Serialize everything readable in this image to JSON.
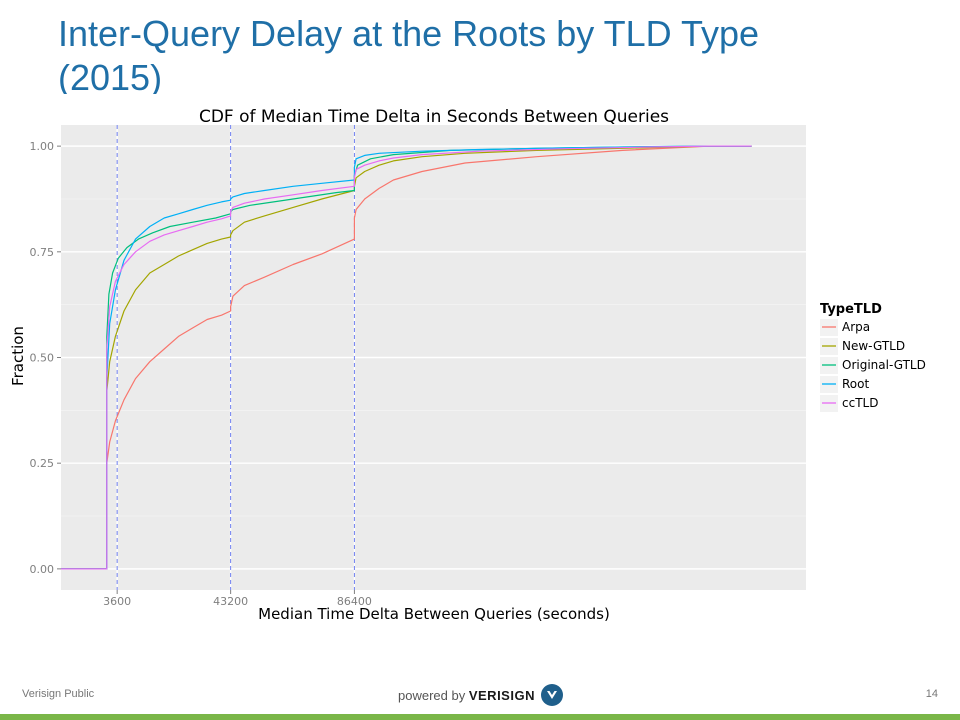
{
  "slide": {
    "title": "Inter-Query Delay at the Roots by TLD Type (2015)",
    "footer_left": "Verisign Public",
    "page_number": "14",
    "brand_prefix": "powered by",
    "brand_name": "VERISIGN"
  },
  "colors": {
    "title": "#1f6fa7",
    "panel": "#ebebeb",
    "grid": "#ffffff",
    "vline": "#6f7ff0",
    "bottom_bar": "#7ab648"
  },
  "chart_data": {
    "type": "line",
    "title": "CDF of Median Time Delta in Seconds Between Queries",
    "xlabel": "Median Time Delta Between Queries (seconds)",
    "ylabel": "Fraction",
    "xlim": [
      -16000,
      244000
    ],
    "ylim": [
      -0.05,
      1.05
    ],
    "xticks": [
      3600,
      43200,
      86400
    ],
    "yticks": [
      0,
      0.25,
      0.5,
      0.75,
      1
    ],
    "ytick_labels": [
      "0.00",
      "0.25",
      "0.50",
      "0.75",
      "1.00"
    ],
    "vlines": [
      3600,
      43200,
      86400
    ],
    "grid": true,
    "legend": {
      "title": "TypeTLD",
      "position": "right"
    },
    "series": [
      {
        "name": "Arpa",
        "color": "#f8766d",
        "x": [
          -16000,
          0,
          1,
          1000,
          3000,
          6000,
          10000,
          15000,
          20000,
          25000,
          30000,
          35000,
          40000,
          43199,
          43201,
          44000,
          48000,
          55000,
          65000,
          75000,
          86399,
          86401,
          87000,
          90000,
          95000,
          100000,
          110000,
          125000,
          150000,
          180000,
          210000,
          225000
        ],
        "y": [
          0,
          0,
          0.25,
          0.3,
          0.35,
          0.4,
          0.45,
          0.49,
          0.52,
          0.55,
          0.57,
          0.59,
          0.6,
          0.61,
          0.62,
          0.645,
          0.67,
          0.69,
          0.72,
          0.745,
          0.78,
          0.83,
          0.85,
          0.875,
          0.9,
          0.92,
          0.94,
          0.96,
          0.975,
          0.99,
          1.0,
          1.0
        ]
      },
      {
        "name": "New-GTLD",
        "color": "#a3a500",
        "x": [
          -16000,
          0,
          1,
          1000,
          3000,
          6000,
          10000,
          15000,
          20000,
          25000,
          30000,
          35000,
          40000,
          43199,
          43201,
          44000,
          48000,
          55000,
          65000,
          75000,
          86399,
          86401,
          87000,
          90000,
          95000,
          100000,
          110000,
          125000,
          150000,
          180000,
          210000,
          225000
        ],
        "y": [
          0,
          0,
          0.42,
          0.49,
          0.55,
          0.61,
          0.66,
          0.7,
          0.72,
          0.74,
          0.755,
          0.77,
          0.78,
          0.785,
          0.79,
          0.8,
          0.82,
          0.835,
          0.855,
          0.875,
          0.895,
          0.905,
          0.925,
          0.94,
          0.955,
          0.965,
          0.975,
          0.983,
          0.99,
          0.995,
          1.0,
          1.0
        ]
      },
      {
        "name": "Original-GTLD",
        "color": "#00bf7d",
        "x": [
          -16000,
          0,
          1,
          700,
          2000,
          4000,
          7000,
          11000,
          16000,
          22000,
          30000,
          38000,
          43199,
          43201,
          44000,
          50000,
          60000,
          70000,
          80000,
          86399,
          86401,
          87500,
          92000,
          100000,
          120000,
          150000,
          180000,
          210000,
          225000
        ],
        "y": [
          0,
          0,
          0.55,
          0.65,
          0.7,
          0.735,
          0.76,
          0.78,
          0.795,
          0.81,
          0.82,
          0.83,
          0.84,
          0.845,
          0.85,
          0.86,
          0.87,
          0.88,
          0.89,
          0.895,
          0.93,
          0.955,
          0.97,
          0.98,
          0.99,
          0.995,
          0.998,
          1.0,
          1.0
        ]
      },
      {
        "name": "Root",
        "color": "#00b0f6",
        "x": [
          -16000,
          0,
          1,
          1000,
          3000,
          6000,
          10000,
          15000,
          20000,
          25000,
          30000,
          35000,
          40000,
          43199,
          43201,
          44000,
          48000,
          55000,
          65000,
          75000,
          86399,
          86401,
          87000,
          90000,
          95000,
          110000,
          130000,
          160000,
          190000,
          210000,
          225000
        ],
        "y": [
          0,
          0,
          0.45,
          0.58,
          0.66,
          0.73,
          0.78,
          0.81,
          0.83,
          0.84,
          0.85,
          0.86,
          0.868,
          0.872,
          0.875,
          0.88,
          0.888,
          0.895,
          0.905,
          0.912,
          0.92,
          0.95,
          0.97,
          0.978,
          0.983,
          0.988,
          0.992,
          0.996,
          0.999,
          1.0,
          1.0
        ]
      },
      {
        "name": "ccTLD",
        "color": "#e76bf3",
        "x": [
          -16000,
          0,
          1,
          1000,
          3000,
          6000,
          10000,
          15000,
          20000,
          25000,
          30000,
          35000,
          40000,
          43199,
          43201,
          44000,
          48000,
          55000,
          65000,
          75000,
          86399,
          86401,
          87000,
          90000,
          95000,
          100000,
          110000,
          130000,
          160000,
          190000,
          210000,
          225000
        ],
        "y": [
          0,
          0,
          0.52,
          0.62,
          0.68,
          0.72,
          0.75,
          0.775,
          0.79,
          0.8,
          0.81,
          0.82,
          0.828,
          0.835,
          0.845,
          0.855,
          0.865,
          0.875,
          0.885,
          0.895,
          0.905,
          0.925,
          0.945,
          0.955,
          0.965,
          0.972,
          0.98,
          0.988,
          0.994,
          0.998,
          1.0,
          1.0
        ]
      }
    ]
  }
}
